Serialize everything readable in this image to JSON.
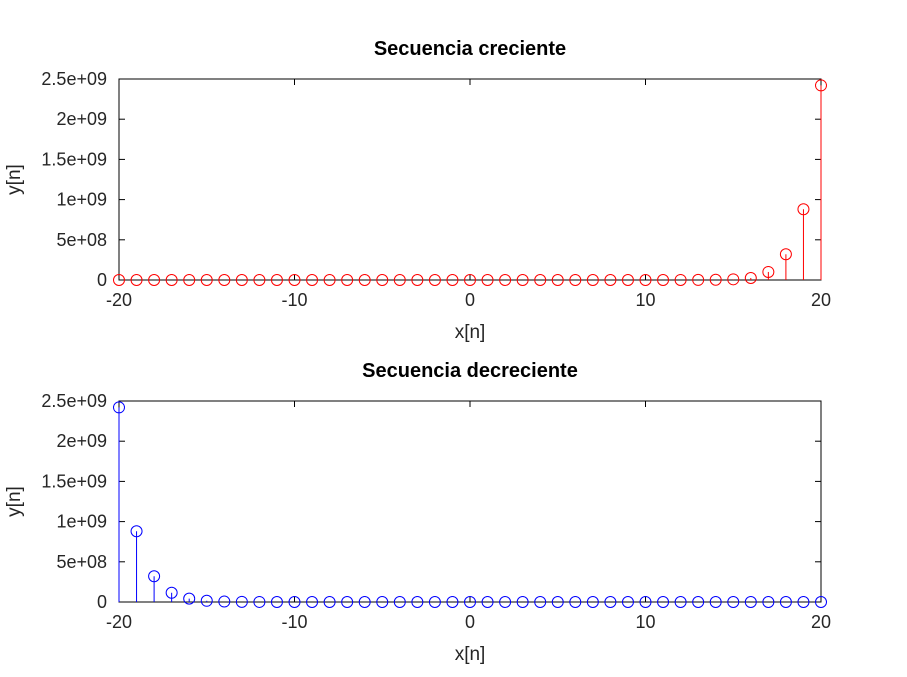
{
  "chart_data": [
    {
      "type": "stem",
      "title": "Secuencia creciente",
      "xlabel": "x[n]",
      "ylabel": "y[n]",
      "xlim": [
        -20,
        20
      ],
      "ylim": [
        0,
        2500000000
      ],
      "xticks": [
        -20,
        -10,
        0,
        10,
        20
      ],
      "xtick_labels": [
        "-20",
        "-10",
        "0",
        "10",
        "20"
      ],
      "yticks": [
        0,
        500000000,
        1000000000,
        1500000000,
        2000000000,
        2500000000
      ],
      "ytick_labels": [
        "0",
        "5e+08",
        "1e+09",
        "1.5e+09",
        "2e+09",
        "2.5e+09"
      ],
      "color": "#ff0000",
      "x": [
        -20,
        -19,
        -18,
        -17,
        -16,
        -15,
        -14,
        -13,
        -12,
        -11,
        -10,
        -9,
        -8,
        -7,
        -6,
        -5,
        -4,
        -3,
        -2,
        -1,
        0,
        1,
        2,
        3,
        4,
        5,
        6,
        7,
        8,
        9,
        10,
        11,
        12,
        13,
        14,
        15,
        16,
        17,
        18,
        19,
        20
      ],
      "y": [
        3e-07,
        8e-07,
        2.3e-06,
        6.7e-06,
        1.9e-05,
        5.4e-05,
        0.00015,
        0.00044,
        0.0012,
        0.0036,
        0.01,
        0.03,
        0.08,
        0.24,
        0.7,
        2,
        6,
        17,
        50,
        150,
        1,
        3,
        8,
        24,
        70,
        200,
        600,
        1700,
        5000,
        15000,
        40000,
        120000,
        350000,
        1000000,
        3000000,
        8500000,
        25000000,
        100000000,
        320000000,
        880000000,
        2420000000
      ]
    },
    {
      "type": "stem",
      "title": "Secuencia decreciente",
      "xlabel": "x[n]",
      "ylabel": "y[n]",
      "xlim": [
        -20,
        20
      ],
      "ylim": [
        0,
        2500000000
      ],
      "xticks": [
        -20,
        -10,
        0,
        10,
        20
      ],
      "xtick_labels": [
        "-20",
        "-10",
        "0",
        "10",
        "20"
      ],
      "yticks": [
        0,
        500000000,
        1000000000,
        1500000000,
        2000000000,
        2500000000
      ],
      "ytick_labels": [
        "0",
        "5e+08",
        "1e+09",
        "1.5e+09",
        "2e+09",
        "2.5e+09"
      ],
      "color": "#0000ff",
      "x": [
        -20,
        -19,
        -18,
        -17,
        -16,
        -15,
        -14,
        -13,
        -12,
        -11,
        -10,
        -9,
        -8,
        -7,
        -6,
        -5,
        -4,
        -3,
        -2,
        -1,
        0,
        1,
        2,
        3,
        4,
        5,
        6,
        7,
        8,
        9,
        10,
        11,
        12,
        13,
        14,
        15,
        16,
        17,
        18,
        19,
        20
      ],
      "y": [
        2420000000,
        880000000,
        320000000,
        115000000,
        42000000,
        15000000,
        5500000,
        2000000,
        720000,
        260000,
        95000,
        35000,
        12500,
        4500,
        1650,
        600,
        220,
        80,
        29,
        11,
        1,
        0.36,
        0.13,
        0.049,
        0.018,
        0.0065,
        0.0024,
        0.0009,
        0.0003,
        0.0001,
        4e-05,
        1.5e-05,
        5e-06,
        2e-06,
        7e-07,
        3e-07,
        1e-07,
        4e-08,
        1e-08,
        5e-09,
        2e-09
      ]
    }
  ]
}
